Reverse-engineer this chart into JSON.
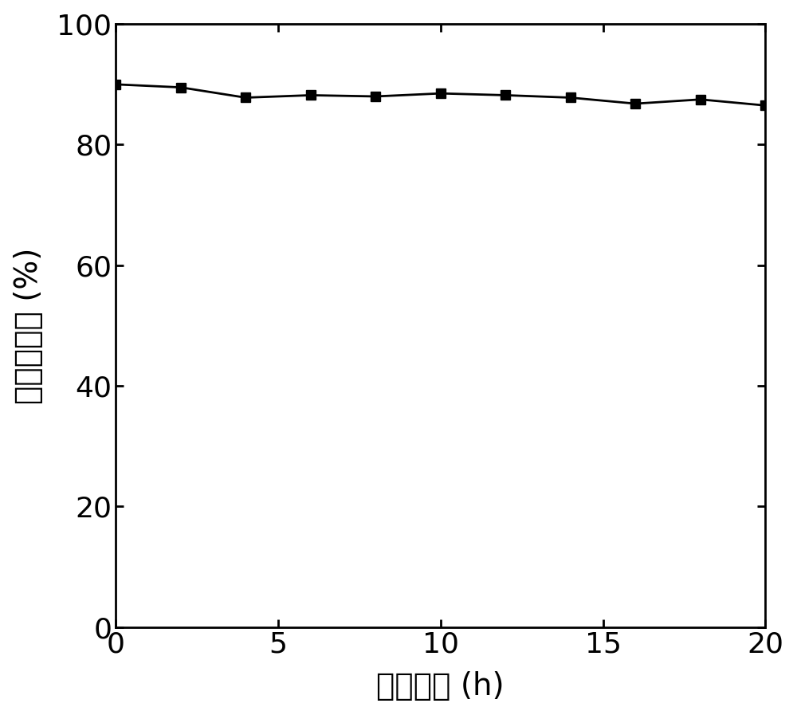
{
  "x": [
    0,
    2,
    4,
    6,
    8,
    10,
    12,
    14,
    16,
    18,
    20
  ],
  "y": [
    90.0,
    89.5,
    87.8,
    88.2,
    88.0,
    88.5,
    88.2,
    87.8,
    86.8,
    87.5,
    86.5
  ],
  "xlabel": "反应时间 (h)",
  "ylabel": "甲烷转化率 (%)",
  "xlim": [
    0,
    20
  ],
  "ylim": [
    0,
    100
  ],
  "xticks": [
    0,
    5,
    10,
    15,
    20
  ],
  "yticks": [
    0,
    20,
    40,
    60,
    80,
    100
  ],
  "line_color": "#000000",
  "marker": "s",
  "marker_size": 9,
  "line_width": 2.0,
  "background_color": "#ffffff",
  "tick_fontsize": 26,
  "label_fontsize": 28,
  "spine_linewidth": 2.0
}
